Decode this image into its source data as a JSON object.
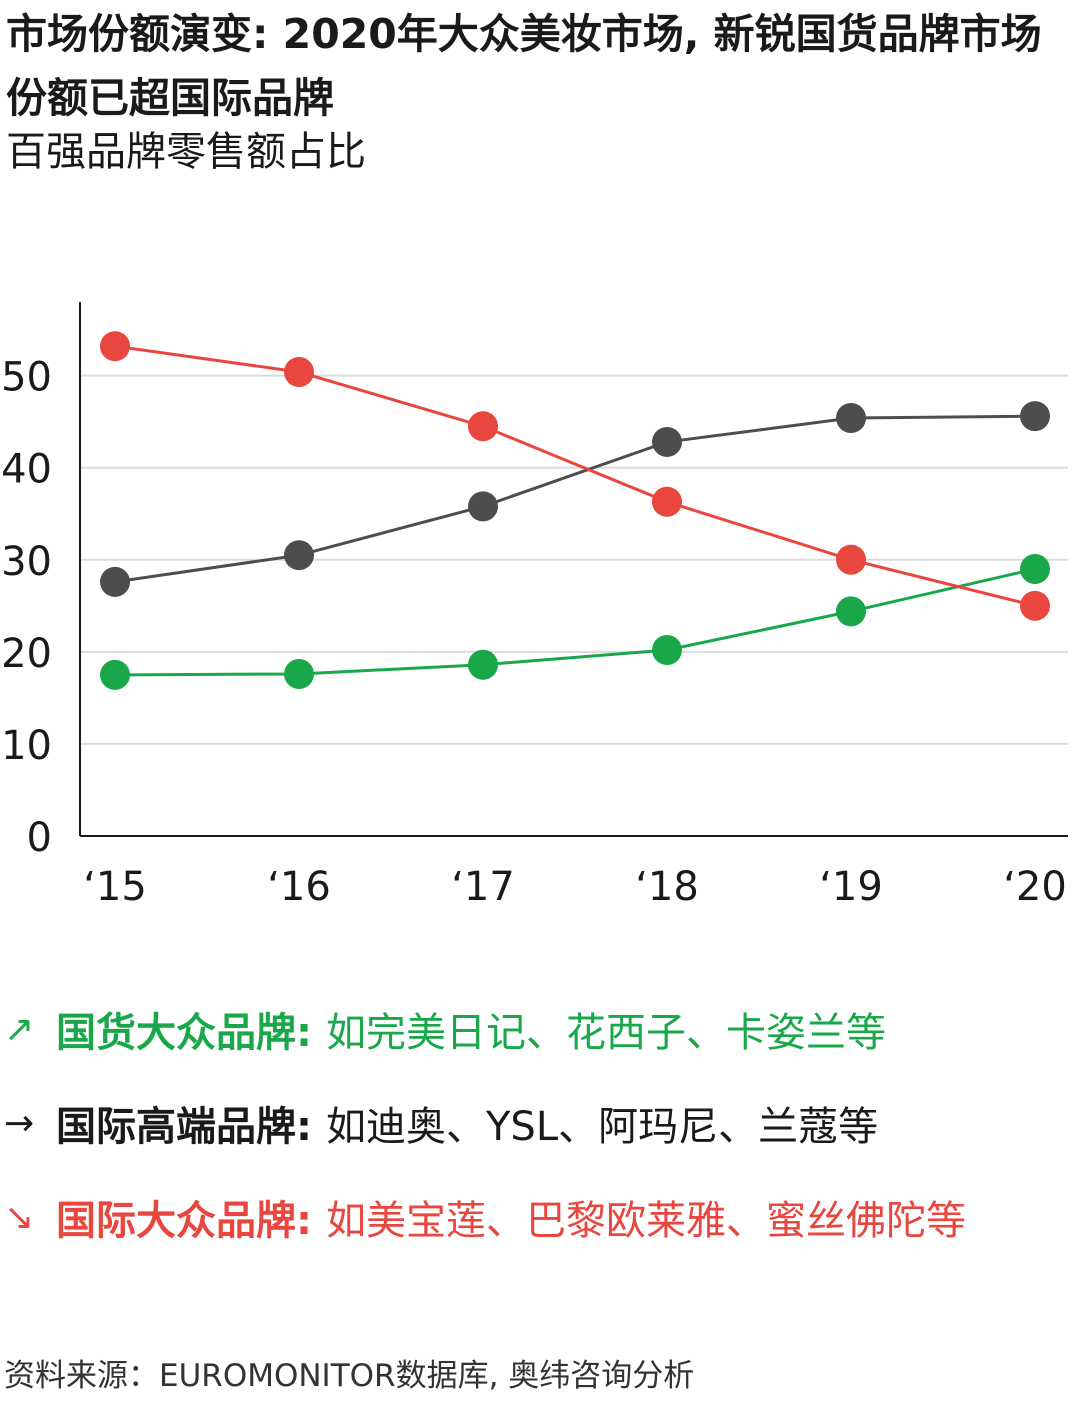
{
  "title": "市场份额演变: 2020年大众美妆市场, 新锐国货品牌市场份额已超国际品牌",
  "subtitle": "百强品牌零售额占比",
  "chart_data": {
    "type": "line",
    "x": [
      "‘15",
      "‘16",
      "‘17",
      "‘18",
      "‘19",
      "‘20"
    ],
    "ylim": [
      0,
      58
    ],
    "yticks": [
      0,
      10,
      20,
      30,
      40,
      50
    ],
    "grid": true,
    "series": [
      {
        "name": "国货大众品牌",
        "color": "#18a84a",
        "values": [
          17.5,
          17.6,
          18.6,
          20.2,
          24.4,
          29.0
        ]
      },
      {
        "name": "国际高端品牌",
        "color": "#4d4d4d",
        "values": [
          27.6,
          30.5,
          35.8,
          42.8,
          45.4,
          45.6
        ]
      },
      {
        "name": "国际大众品牌",
        "color": "#e8463e",
        "values": [
          53.2,
          50.4,
          44.5,
          36.3,
          30.0,
          25.0
        ]
      }
    ]
  },
  "legend": [
    {
      "arrow": "↗",
      "name": "国货大众品牌:",
      "examples": "如完美日记、花西子、卡姿兰等",
      "color": "#18a84a"
    },
    {
      "arrow": "→",
      "name": "国际高端品牌:",
      "examples": "如迪奥、YSL、阿玛尼、兰蔻等",
      "color": "#1a1a1a"
    },
    {
      "arrow": "↘",
      "name": "国际大众品牌:",
      "examples": "如美宝莲、巴黎欧莱雅、蜜丝佛陀等",
      "color": "#e8463e"
    }
  ],
  "source": "资料来源：EUROMONITOR数据库, 奥纬咨询分析"
}
